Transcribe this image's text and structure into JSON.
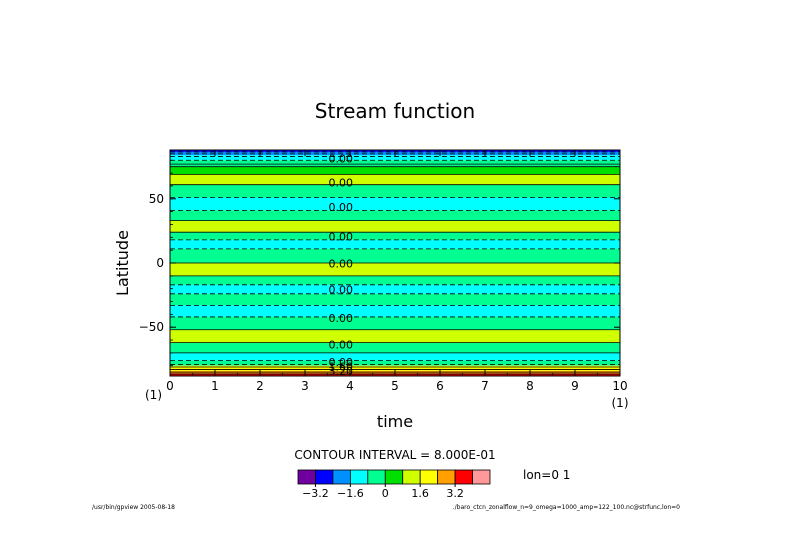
{
  "chart_data": {
    "type": "heatmap",
    "title": "Stream function",
    "xlabel": "time",
    "ylabel": "Latitude",
    "xlim": [
      0,
      10
    ],
    "ylim": [
      -88,
      88
    ],
    "x_ticks": [
      "0",
      "1",
      "2",
      "3",
      "4",
      "5",
      "6",
      "7",
      "8",
      "9",
      "10"
    ],
    "y_ticks": [
      {
        "value": 50,
        "label": "50"
      },
      {
        "value": 0,
        "label": "0"
      },
      {
        "value": -50,
        "label": "-50"
      }
    ],
    "x_left_annotation": "(1)",
    "x_right_annotation": "(1)",
    "contour_interval_text": "CONTOUR INTERVAL = 8.000E-01",
    "side_note": "lon=0 1",
    "colorbar": {
      "colors": [
        "#7000a0",
        "#0000ff",
        "#0090ff",
        "#00ffff",
        "#00ff90",
        "#00e000",
        "#d0ff00",
        "#ffff00",
        "#ffa000",
        "#ff0000",
        "#ff9999"
      ],
      "tick_labels": [
        "-3.2",
        "-1.6",
        "0",
        "1.6",
        "3.2"
      ]
    },
    "bands": [
      {
        "lat_top": 88,
        "lat_bottom": 86.5,
        "color": "#0000ff"
      },
      {
        "lat_top": 86.5,
        "lat_bottom": 84,
        "color": "#0090ff"
      },
      {
        "lat_top": 84,
        "lat_bottom": 80,
        "color": "#00ffff"
      },
      {
        "lat_top": 80,
        "lat_bottom": 75,
        "color": "#00ff90"
      },
      {
        "lat_top": 75,
        "lat_bottom": 69,
        "color": "#00e000"
      },
      {
        "lat_top": 69,
        "lat_bottom": 61,
        "color": "#d0ff00"
      },
      {
        "lat_top": 61,
        "lat_bottom": 51,
        "color": "#00ff90"
      },
      {
        "lat_top": 51,
        "lat_bottom": 41,
        "color": "#00ffff"
      },
      {
        "lat_top": 41,
        "lat_bottom": 33,
        "color": "#00ff90"
      },
      {
        "lat_top": 33,
        "lat_bottom": 24,
        "color": "#d0ff00"
      },
      {
        "lat_top": 24,
        "lat_bottom": 18,
        "color": "#00ff90"
      },
      {
        "lat_top": 18,
        "lat_bottom": 11,
        "color": "#00ffff"
      },
      {
        "lat_top": 11,
        "lat_bottom": 0,
        "color": "#00ff90"
      },
      {
        "lat_top": 0,
        "lat_bottom": -10,
        "color": "#d0ff00"
      },
      {
        "lat_top": -10,
        "lat_bottom": -17,
        "color": "#00ff90"
      },
      {
        "lat_top": -17,
        "lat_bottom": -24,
        "color": "#00ffff"
      },
      {
        "lat_top": -24,
        "lat_bottom": -33,
        "color": "#00ff90"
      },
      {
        "lat_top": -33,
        "lat_bottom": -42,
        "color": "#00ffff"
      },
      {
        "lat_top": -42,
        "lat_bottom": -52,
        "color": "#00ff90"
      },
      {
        "lat_top": -52,
        "lat_bottom": -62,
        "color": "#d0ff00"
      },
      {
        "lat_top": -62,
        "lat_bottom": -70,
        "color": "#00ff90"
      },
      {
        "lat_top": -70,
        "lat_bottom": -76,
        "color": "#00ffff"
      },
      {
        "lat_top": -76,
        "lat_bottom": -80,
        "color": "#00ff90"
      },
      {
        "lat_top": -80,
        "lat_bottom": -84,
        "color": "#ffff00"
      },
      {
        "lat_top": -84,
        "lat_bottom": -86,
        "color": "#ffa000"
      },
      {
        "lat_top": -86,
        "lat_bottom": -88,
        "color": "#ff0000"
      }
    ],
    "contour_lines": [
      {
        "lat": 86.5,
        "dashed": true
      },
      {
        "lat": 85,
        "dashed": true
      },
      {
        "lat": 83,
        "dashed": true
      },
      {
        "lat": 80,
        "dashed": true
      },
      {
        "lat": 77,
        "dashed": false
      },
      {
        "lat": 75,
        "dashed": false
      },
      {
        "lat": 69,
        "dashed": false
      },
      {
        "lat": 61,
        "dashed": false
      },
      {
        "lat": 51,
        "dashed": true
      },
      {
        "lat": 41,
        "dashed": true
      },
      {
        "lat": 33,
        "dashed": false
      },
      {
        "lat": 24,
        "dashed": false
      },
      {
        "lat": 18,
        "dashed": true
      },
      {
        "lat": 11,
        "dashed": true
      },
      {
        "lat": 0,
        "dashed": false
      },
      {
        "lat": -10,
        "dashed": false
      },
      {
        "lat": -17,
        "dashed": true
      },
      {
        "lat": -24,
        "dashed": true
      },
      {
        "lat": -33,
        "dashed": true
      },
      {
        "lat": -42,
        "dashed": true
      },
      {
        "lat": -52,
        "dashed": false
      },
      {
        "lat": -62,
        "dashed": false
      },
      {
        "lat": -70,
        "dashed": false
      },
      {
        "lat": -76,
        "dashed": true
      },
      {
        "lat": -79,
        "dashed": true
      },
      {
        "lat": -81,
        "dashed": false
      },
      {
        "lat": -83,
        "dashed": false
      },
      {
        "lat": -85,
        "dashed": false
      },
      {
        "lat": -86.5,
        "dashed": false
      }
    ],
    "contour_labels": [
      {
        "lat": 81.5,
        "text": "0.00"
      },
      {
        "lat": 62.5,
        "text": "0.00"
      },
      {
        "lat": 43.5,
        "text": "0.00"
      },
      {
        "lat": 20.5,
        "text": "0.00"
      },
      {
        "lat": -0.5,
        "text": "0.00"
      },
      {
        "lat": -20.5,
        "text": "0.00"
      },
      {
        "lat": -43,
        "text": "0.00"
      },
      {
        "lat": -63.5,
        "text": "0.00"
      },
      {
        "lat": -77,
        "text": "0.00"
      },
      {
        "lat": -80.5,
        "text": "1.60"
      },
      {
        "lat": -84,
        "text": "3.20"
      }
    ],
    "contour_label_x": 3.5
  },
  "footer": {
    "left": "/usr/bin/gpview  2005-08-18",
    "right": "./baro_ctcn_zonalflow_n=9_omega=1000_amp=122_100.nc@strfunc,lon=0"
  }
}
